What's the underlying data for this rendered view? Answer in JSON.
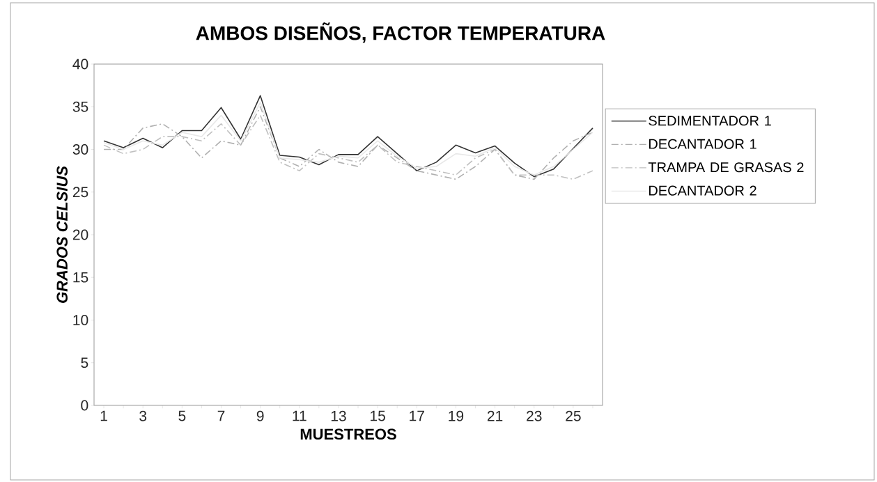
{
  "chart_data": {
    "type": "line",
    "title": "AMBOS DISEÑOS, FACTOR TEMPERATURA",
    "xlabel": "MUESTREOS",
    "ylabel": "GRADOS CELSIUS",
    "categories": [
      "1",
      null,
      "3",
      null,
      "5",
      null,
      "7",
      null,
      "9",
      null,
      "11",
      null,
      "13",
      null,
      "15",
      null,
      "17",
      null,
      "19",
      null,
      "21",
      null,
      "23",
      null,
      "25",
      null
    ],
    "ylim": [
      0,
      40
    ],
    "yticks": [
      0,
      5,
      10,
      15,
      20,
      25,
      30,
      35,
      40
    ],
    "legend": "right",
    "series": [
      {
        "name": "SEDIMENTADOR 1",
        "color": "#333333",
        "line_style": "solid",
        "values": [
          31.0,
          30.2,
          31.3,
          30.2,
          32.2,
          32.2,
          34.9,
          31.2,
          36.3,
          29.3,
          29.1,
          28.2,
          29.4,
          29.4,
          31.5,
          29.5,
          27.5,
          28.5,
          30.5,
          29.6,
          30.4,
          28.4,
          26.8,
          27.7,
          30.1,
          32.5
        ]
      },
      {
        "name": "DECANTADOR 1",
        "color": "#b0b0b0",
        "line_style": "dashed",
        "values": [
          30.0,
          30.0,
          32.5,
          33.0,
          31.5,
          29.0,
          31.0,
          30.5,
          35.0,
          29.0,
          28.0,
          30.0,
          28.5,
          28.0,
          30.5,
          29.0,
          27.5,
          27.0,
          26.5,
          28.0,
          30.0,
          27.0,
          26.5,
          29.0,
          31.0,
          32.0
        ]
      },
      {
        "name": "TRAMPA DE GRASAS 2",
        "color": "#c0c0c0",
        "line_style": "dashed",
        "values": [
          30.5,
          29.5,
          30.0,
          31.5,
          31.5,
          31.0,
          33.0,
          30.5,
          34.0,
          28.5,
          27.5,
          29.5,
          29.0,
          28.5,
          30.5,
          28.5,
          28.0,
          27.5,
          27.0,
          29.0,
          30.0,
          27.0,
          27.0,
          27.0,
          26.5,
          27.5
        ]
      },
      {
        "name": "DECANTADOR 2",
        "color": "#e8e8e8",
        "line_style": "solid",
        "values": [
          30.8,
          30.0,
          31.0,
          30.5,
          32.0,
          31.5,
          34.0,
          31.0,
          35.5,
          29.0,
          28.8,
          28.5,
          29.2,
          29.0,
          31.0,
          29.2,
          27.8,
          28.0,
          29.5,
          29.2,
          30.2,
          28.0,
          27.0,
          28.0,
          30.0,
          32.0
        ]
      }
    ]
  }
}
